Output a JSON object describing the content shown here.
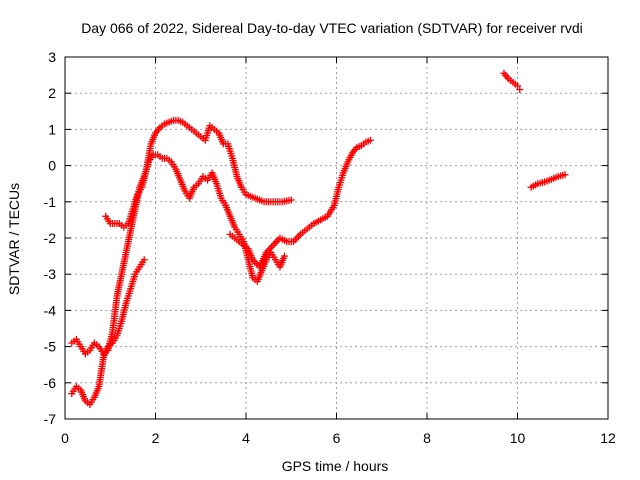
{
  "chart_data": {
    "type": "scatter",
    "title": "Day 066 of 2022, Sidereal Day-to-day VTEC variation (SDTVAR) for receiver rvdi",
    "xlabel": "GPS time / hours",
    "ylabel": "SDTVAR / TECUs",
    "xlim": [
      0,
      12
    ],
    "ylim": [
      -7,
      3
    ],
    "xticks": [
      "0",
      "2",
      "4",
      "6",
      "8",
      "10",
      "12"
    ],
    "yticks": [
      "-7",
      "-6",
      "-5",
      "-4",
      "-3",
      "-2",
      "-1",
      "0",
      "1",
      "2",
      "3"
    ],
    "grid": true,
    "marker": "plus",
    "color": "#ff0000",
    "tracks": [
      {
        "x": [
          0.15,
          0.25,
          0.35,
          0.45,
          0.55,
          0.65,
          0.75,
          0.85,
          0.95,
          1.05,
          1.15,
          1.25,
          1.35,
          1.45,
          1.55,
          1.65,
          1.75,
          1.85,
          1.95,
          2.05,
          2.15,
          2.25,
          2.35,
          2.45,
          2.55,
          2.65,
          2.75,
          2.85,
          2.95,
          3.05,
          3.15,
          3.25,
          3.35,
          3.45,
          3.55,
          3.65,
          3.75,
          3.85,
          3.95,
          4.05,
          4.15,
          4.25,
          4.35,
          4.45,
          4.55,
          4.65,
          4.75,
          4.85
        ],
        "y": [
          -4.9,
          -4.8,
          -5.0,
          -5.2,
          -5.1,
          -4.9,
          -5.0,
          -5.2,
          -5.1,
          -4.6,
          -3.6,
          -3.0,
          -2.4,
          -1.8,
          -1.2,
          -0.6,
          -0.3,
          0.1,
          0.3,
          0.3,
          0.2,
          0.2,
          0.1,
          -0.1,
          -0.4,
          -0.7,
          -0.9,
          -0.6,
          -0.5,
          -0.3,
          -0.4,
          -0.2,
          -0.5,
          -0.9,
          -1.1,
          -1.4,
          -1.7,
          -1.9,
          -2.1,
          -2.6,
          -3.1,
          -3.2,
          -2.9,
          -2.6,
          -2.4,
          -2.6,
          -2.8,
          -2.5
        ]
      },
      {
        "x": [
          0.15,
          0.25,
          0.35,
          0.45,
          0.55,
          0.65,
          0.75,
          0.85,
          0.95,
          1.05,
          1.15,
          1.25,
          1.35,
          1.45,
          1.55,
          1.65,
          1.75
        ],
        "y": [
          -6.3,
          -6.1,
          -6.2,
          -6.5,
          -6.6,
          -6.4,
          -6.1,
          -5.3,
          -5.0,
          -4.9,
          -4.7,
          -4.3,
          -3.8,
          -3.4,
          -3.0,
          -2.8,
          -2.6
        ]
      },
      {
        "x": [
          0.9,
          1.0,
          1.1,
          1.2,
          1.3,
          1.4,
          1.5,
          1.6,
          1.7,
          1.8,
          1.9,
          2.0,
          2.1,
          2.2,
          2.3,
          2.4,
          2.5,
          2.6,
          2.7,
          2.8,
          2.9,
          3.0,
          3.1,
          3.2,
          3.3,
          3.4,
          3.5,
          3.6,
          3.7,
          3.8,
          3.9,
          4.0,
          4.2,
          4.4,
          4.6,
          4.8,
          5.0
        ],
        "y": [
          -1.4,
          -1.6,
          -1.6,
          -1.6,
          -1.7,
          -1.6,
          -1.2,
          -0.8,
          -0.6,
          -0.1,
          0.6,
          0.9,
          1.05,
          1.15,
          1.2,
          1.25,
          1.25,
          1.2,
          1.1,
          1.0,
          0.9,
          0.8,
          0.7,
          1.1,
          1.0,
          0.9,
          0.6,
          0.6,
          0.2,
          -0.3,
          -0.6,
          -0.8,
          -0.9,
          -1.0,
          -1.0,
          -1.0,
          -0.95
        ]
      },
      {
        "x": [
          3.65,
          3.75,
          3.85,
          3.95,
          4.05,
          4.15,
          4.3,
          4.45,
          4.6,
          4.75,
          4.9,
          5.05,
          5.2,
          5.35,
          5.5,
          5.65,
          5.8,
          5.95,
          6.05,
          6.15,
          6.25,
          6.35,
          6.45,
          6.55,
          6.65,
          6.75
        ],
        "y": [
          -1.9,
          -2.0,
          -2.1,
          -2.2,
          -2.3,
          -2.6,
          -2.8,
          -2.4,
          -2.2,
          -2.0,
          -2.1,
          -2.1,
          -1.9,
          -1.75,
          -1.6,
          -1.5,
          -1.4,
          -1.1,
          -0.6,
          -0.2,
          0.1,
          0.35,
          0.5,
          0.55,
          0.65,
          0.7
        ]
      },
      {
        "x": [
          9.7,
          9.8,
          9.9,
          10.0,
          10.05
        ],
        "y": [
          2.55,
          2.4,
          2.3,
          2.2,
          2.1
        ]
      },
      {
        "x": [
          10.3,
          10.45,
          10.6,
          10.75,
          10.9,
          11.05
        ],
        "y": [
          -0.6,
          -0.5,
          -0.45,
          -0.38,
          -0.3,
          -0.25
        ]
      }
    ]
  }
}
